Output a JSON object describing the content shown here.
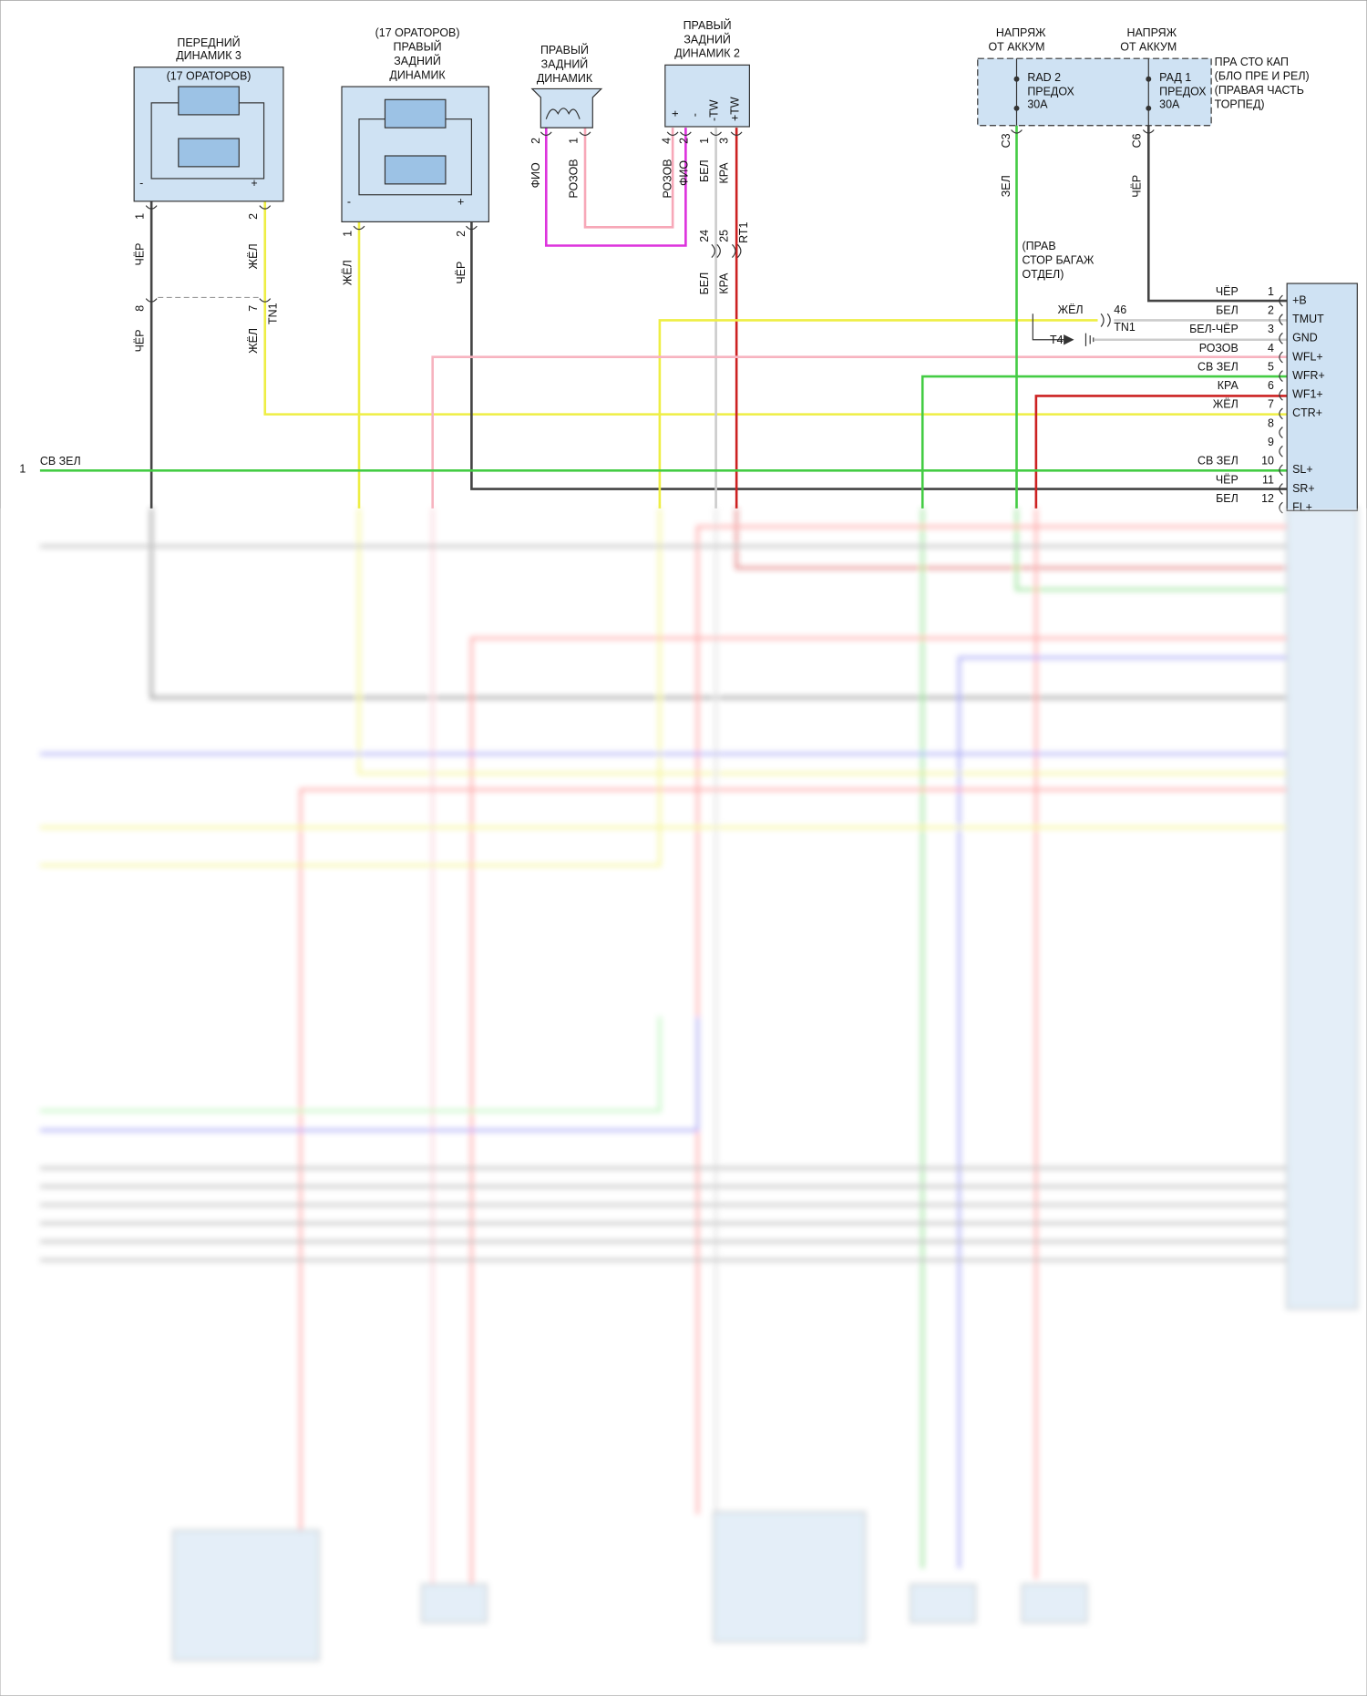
{
  "front_speaker_3": {
    "title": [
      "ПЕРЕДНИЙ",
      "ДИНАМИК 3"
    ],
    "note": "(17 ОРАТОРОВ)",
    "polarity": [
      "-",
      "+"
    ],
    "pins": [
      "1",
      "2"
    ]
  },
  "right_rear_speaker_17": {
    "title": [
      "(17 ОРАТОРОВ)",
      "ПРАВЫЙ",
      "ЗАДНИЙ",
      "ДИНАМИК"
    ],
    "polarity": [
      "-",
      "+"
    ],
    "pins": [
      "1",
      "2"
    ]
  },
  "right_rear_speaker": {
    "title": [
      "ПРАВЫЙ",
      "ЗАДНИЙ",
      "ДИНАМИК"
    ],
    "pins": [
      "2",
      "1"
    ]
  },
  "right_rear_speaker_2": {
    "title": [
      "ПРАВЫЙ",
      "ЗАДНИЙ",
      "ДИНАМИК 2"
    ],
    "terminals": [
      "+",
      "-",
      "-TW",
      "+TW"
    ],
    "pins": [
      "4",
      "2",
      "1",
      "3"
    ]
  },
  "fuse_box": {
    "feeds": [
      [
        "НАПРЯЖ",
        "ОТ АККУМ"
      ],
      [
        "НАПРЯЖ",
        "ОТ АККУМ"
      ]
    ],
    "fuses": [
      [
        "RAD 2",
        "ПРЕДОХ",
        "30A"
      ],
      [
        "РАД 1",
        "ПРЕДОХ",
        "30A"
      ]
    ],
    "pins": [
      "C3",
      "C6"
    ],
    "location": [
      "ПРА СТО КАП",
      "(БЛО ПРЕ И РЕЛ)",
      "(ПРАВАЯ ЧАСТЬ",
      "ТОРПЕД)"
    ]
  },
  "wire_labels": [
    "ЧЁР",
    "ЖЁЛ",
    "ЧЁР",
    "ЖЁЛ",
    "ЖЁЛ",
    "ЧЁР",
    "ФИО",
    "РОЗОВ",
    "РОЗОВ",
    "ФИО",
    "БЕЛ",
    "КРА",
    "БЕЛ",
    "КРА",
    "ЗЕЛ",
    "ЧЁР"
  ],
  "inline_connectors": [
    {
      "pins": [
        "8",
        "7"
      ],
      "name": "TN1"
    },
    {
      "pins": [
        "24",
        "25"
      ],
      "name": "RT1"
    }
  ],
  "ground": {
    "location": [
      "(ПРАВ",
      "СТОР БАГАЖ",
      "ОТДЕЛ)"
    ],
    "wire": "ЖЁЛ",
    "pin": "46",
    "connector": "TN1",
    "name": "T4"
  },
  "left_terminal": {
    "pin": "1",
    "wire": "СВ ЗЕЛ"
  },
  "amplifier_connector": {
    "rows": [
      {
        "wire": "ЧЁР",
        "pin": "1",
        "signal": "+B"
      },
      {
        "wire": "БЕЛ",
        "pin": "2",
        "signal": "TMUT"
      },
      {
        "wire": "БЕЛ-ЧЁР",
        "pin": "3",
        "signal": "GND"
      },
      {
        "wire": "РОЗОВ",
        "pin": "4",
        "signal": "WFL+"
      },
      {
        "wire": "СВ ЗЕЛ",
        "pin": "5",
        "signal": "WFR+"
      },
      {
        "wire": "КРА",
        "pin": "6",
        "signal": "WF1+"
      },
      {
        "wire": "ЖЁЛ",
        "pin": "7",
        "signal": "CTR+"
      },
      {
        "pin": "8"
      },
      {
        "pin": "9"
      },
      {
        "wire": "СВ ЗЕЛ",
        "pin": "10",
        "signal": "SL+"
      },
      {
        "wire": "ЧЁР",
        "pin": "11",
        "signal": "SR+"
      },
      {
        "wire": "БЕЛ",
        "pin": "12",
        "signal": "FL+"
      }
    ]
  }
}
